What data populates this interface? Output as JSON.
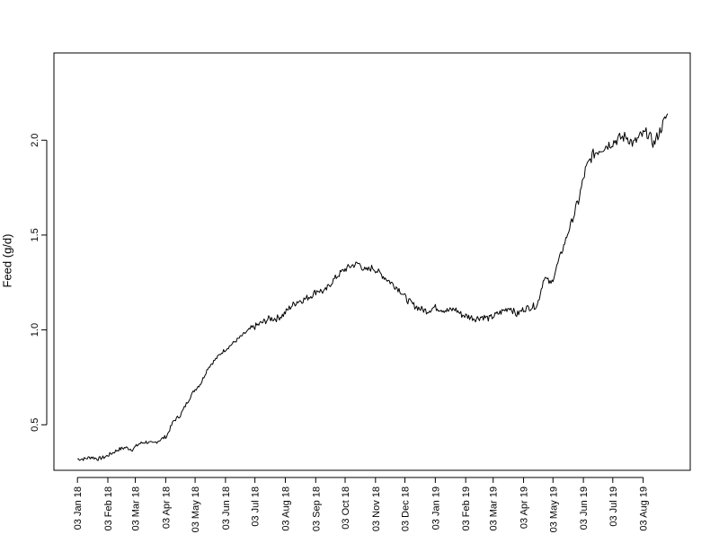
{
  "chart_data": {
    "type": "line",
    "title": "",
    "xlabel": "",
    "ylabel": "Feed (g/d)",
    "x_tick_labels": [
      "03 Jan 18",
      "03 Feb 18",
      "03 Mar 18",
      "03 Apr 18",
      "03 May 18",
      "03 Jun 18",
      "03 Jul 18",
      "03 Aug 18",
      "03 Sep 18",
      "03 Oct 18",
      "03 Nov 18",
      "03 Dec 18",
      "03 Jan 19",
      "03 Feb 19",
      "03 Mar 19",
      "03 Apr 19",
      "03 May 19",
      "03 Jun 19",
      "03 Jul 19",
      "03 Aug 19"
    ],
    "x_ticks": [
      "2018-01-03",
      "2018-02-03",
      "2018-03-03",
      "2018-04-03",
      "2018-05-03",
      "2018-06-03",
      "2018-07-03",
      "2018-08-03",
      "2018-09-03",
      "2018-10-03",
      "2018-11-03",
      "2018-12-03",
      "2019-01-03",
      "2019-02-03",
      "2019-03-03",
      "2019-04-03",
      "2019-05-03",
      "2019-06-03",
      "2019-07-03",
      "2019-08-03"
    ],
    "y_tick_labels": [
      "0.5",
      "1.0",
      "1.5",
      "2.0"
    ],
    "y_ticks": [
      0.5,
      1.0,
      1.5,
      2.0
    ],
    "xlim": [
      "2017-12-10",
      "2019-09-20"
    ],
    "ylim": [
      0.26,
      2.46
    ],
    "grid": false,
    "legend": "none",
    "line_color": "#000000",
    "series": [
      {
        "x": [
          "2018-01-03",
          "2018-01-10",
          "2018-01-17",
          "2018-01-24",
          "2018-01-31",
          "2018-02-07",
          "2018-02-14",
          "2018-02-21",
          "2018-02-28",
          "2018-03-07",
          "2018-03-14",
          "2018-03-21",
          "2018-03-28",
          "2018-04-04",
          "2018-04-11",
          "2018-04-18",
          "2018-04-25",
          "2018-05-02",
          "2018-05-09",
          "2018-05-16",
          "2018-05-23",
          "2018-05-30",
          "2018-06-06",
          "2018-06-13",
          "2018-06-20",
          "2018-06-27",
          "2018-07-04",
          "2018-07-11",
          "2018-07-18",
          "2018-07-25",
          "2018-08-01",
          "2018-08-08",
          "2018-08-15",
          "2018-08-22",
          "2018-08-29",
          "2018-09-05",
          "2018-09-12",
          "2018-09-19",
          "2018-09-26",
          "2018-10-03",
          "2018-10-10",
          "2018-10-17",
          "2018-10-24",
          "2018-10-31",
          "2018-11-07",
          "2018-11-14",
          "2018-11-21",
          "2018-11-28",
          "2018-12-05",
          "2018-12-12",
          "2018-12-19",
          "2018-12-26",
          "2019-01-02",
          "2019-01-09",
          "2019-01-16",
          "2019-01-23",
          "2019-01-30",
          "2019-02-06",
          "2019-02-13",
          "2019-02-20",
          "2019-02-27",
          "2019-03-06",
          "2019-03-13",
          "2019-03-20",
          "2019-03-27",
          "2019-04-03",
          "2019-04-10",
          "2019-04-17",
          "2019-04-24",
          "2019-05-01",
          "2019-05-08",
          "2019-05-15",
          "2019-05-22",
          "2019-05-29",
          "2019-06-05",
          "2019-06-12",
          "2019-06-19",
          "2019-06-26",
          "2019-07-03",
          "2019-07-10",
          "2019-07-17",
          "2019-07-24",
          "2019-07-31",
          "2019-08-07",
          "2019-08-14",
          "2019-08-21",
          "2019-08-28"
        ],
        "values": [
          0.32,
          0.32,
          0.33,
          0.32,
          0.33,
          0.35,
          0.37,
          0.38,
          0.37,
          0.4,
          0.41,
          0.4,
          0.42,
          0.44,
          0.52,
          0.55,
          0.62,
          0.68,
          0.72,
          0.8,
          0.84,
          0.88,
          0.91,
          0.94,
          0.97,
          1.0,
          1.02,
          1.04,
          1.06,
          1.06,
          1.08,
          1.12,
          1.15,
          1.16,
          1.18,
          1.21,
          1.2,
          1.25,
          1.29,
          1.32,
          1.34,
          1.35,
          1.31,
          1.33,
          1.3,
          1.27,
          1.24,
          1.21,
          1.16,
          1.13,
          1.11,
          1.1,
          1.12,
          1.11,
          1.1,
          1.11,
          1.08,
          1.07,
          1.06,
          1.07,
          1.06,
          1.08,
          1.1,
          1.12,
          1.08,
          1.11,
          1.12,
          1.13,
          1.28,
          1.24,
          1.35,
          1.46,
          1.57,
          1.68,
          1.84,
          1.92,
          1.95,
          1.97,
          1.99,
          2.01,
          2.02,
          1.98,
          2.02,
          2.04,
          1.98,
          2.06,
          2.14
        ]
      }
    ]
  }
}
